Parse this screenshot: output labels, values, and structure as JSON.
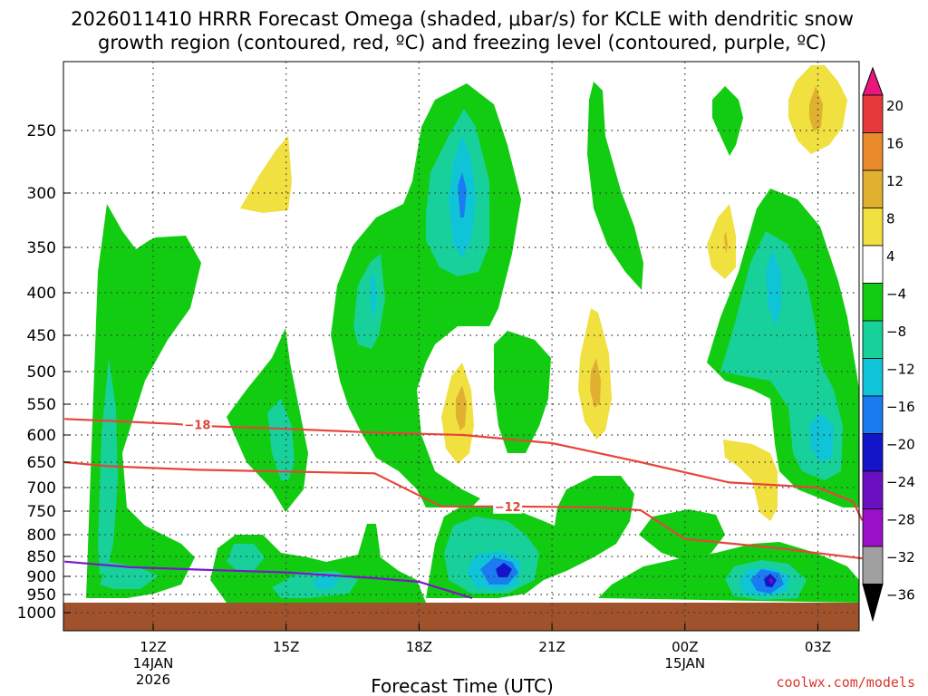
{
  "chart_data": {
    "type": "heatmap",
    "title_line1": "2026011410 HRRR Forecast Omega (shaded, μbar/s) for KCLE with dendritic snow",
    "title_line2": "growth region (contoured, red, ºC) and freezing level (contoured, purple, ºC)",
    "xlabel": "Forecast Time (UTC)",
    "credit": "coolwx.com/models",
    "y_scale": "pressure (hPa), decreasing upward",
    "y_ticks": [
      250,
      300,
      350,
      400,
      450,
      500,
      550,
      600,
      650,
      700,
      750,
      800,
      850,
      900,
      950,
      1000
    ],
    "x_ticks": [
      {
        "hour": 12,
        "label": "12Z",
        "sub1": "14JAN",
        "sub2": "2026"
      },
      {
        "hour": 15,
        "label": "15Z",
        "sub1": "",
        "sub2": ""
      },
      {
        "hour": 18,
        "label": "18Z",
        "sub1": "",
        "sub2": ""
      },
      {
        "hour": 21,
        "label": "21Z",
        "sub1": "",
        "sub2": ""
      },
      {
        "hour": 24,
        "label": "00Z",
        "sub1": "15JAN",
        "sub2": ""
      },
      {
        "hour": 27,
        "label": "03Z",
        "sub1": "",
        "sub2": ""
      }
    ],
    "grid": true,
    "colorbar": {
      "labels": [
        "20",
        "16",
        "12",
        "8",
        "4",
        "−4",
        "−8",
        "−12",
        "−16",
        "−20",
        "−24",
        "−28",
        "−32",
        "−36"
      ],
      "colors": [
        "#e8177e",
        "#e63a3a",
        "#e88a2a",
        "#e0b030",
        "#f0e040",
        "#ffffff",
        "#12cc12",
        "#18d09a",
        "#10c4d8",
        "#1a7cf0",
        "#1414c8",
        "#6a10c0",
        "#9a10c8",
        "#a0a0a0",
        "#000000"
      ]
    },
    "contours": {
      "dendritic": [
        {
          "label": "−18",
          "points": [
            [
              10.0,
              574
            ],
            [
              11.0,
              577
            ],
            [
              12.5,
              582
            ],
            [
              13.0,
              585
            ],
            [
              15.0,
              590
            ],
            [
              17.0,
              596
            ],
            [
              19.0,
              600
            ],
            [
              21.0,
              615
            ],
            [
              23.0,
              650
            ],
            [
              25.0,
              690
            ],
            [
              27.0,
              700
            ],
            [
              27.8,
              730
            ],
            [
              28.0,
              770
            ]
          ]
        },
        {
          "label": "−12",
          "points": [
            [
              10.0,
              650
            ],
            [
              11.0,
              658
            ],
            [
              13.0,
              665
            ],
            [
              17.0,
              672
            ],
            [
              18.5,
              740
            ],
            [
              20.0,
              740
            ],
            [
              22.0,
              742
            ],
            [
              23.0,
              748
            ],
            [
              24.0,
              810
            ],
            [
              26.0,
              830
            ],
            [
              28.0,
              855
            ]
          ]
        }
      ],
      "freezing_level": {
        "points": [
          [
            10.0,
            863
          ],
          [
            11.5,
            877
          ],
          [
            13.0,
            883
          ],
          [
            15.0,
            890
          ],
          [
            17.0,
            905
          ],
          [
            18.0,
            915
          ],
          [
            19.2,
            960
          ]
        ]
      }
    }
  }
}
